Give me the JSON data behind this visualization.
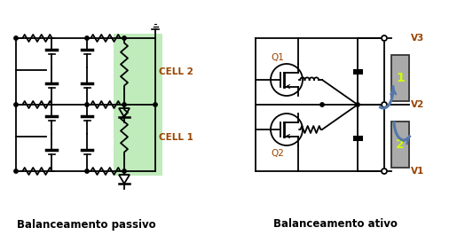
{
  "title_passive": "Balanceamento passivo",
  "title_active": "Balanceamento ativo",
  "cell2_label": "CELL 2",
  "cell1_label": "CELL 1",
  "v1_label": "V1",
  "v2_label": "V2",
  "v3_label": "V3",
  "q1_label": "Q1",
  "q2_label": "Q2",
  "green_highlight": "#b5e8b0",
  "bg_color": "#ffffff",
  "line_color": "#000000",
  "battery_color": "#aaaaaa",
  "battery_number_color": "#ccff00",
  "arrow_color": "#5577aa",
  "label_color_cell": "#994400",
  "title_fontsize": 8.5,
  "label_fontsize": 7.5,
  "small_fontsize": 6.5,
  "lw": 1.3
}
